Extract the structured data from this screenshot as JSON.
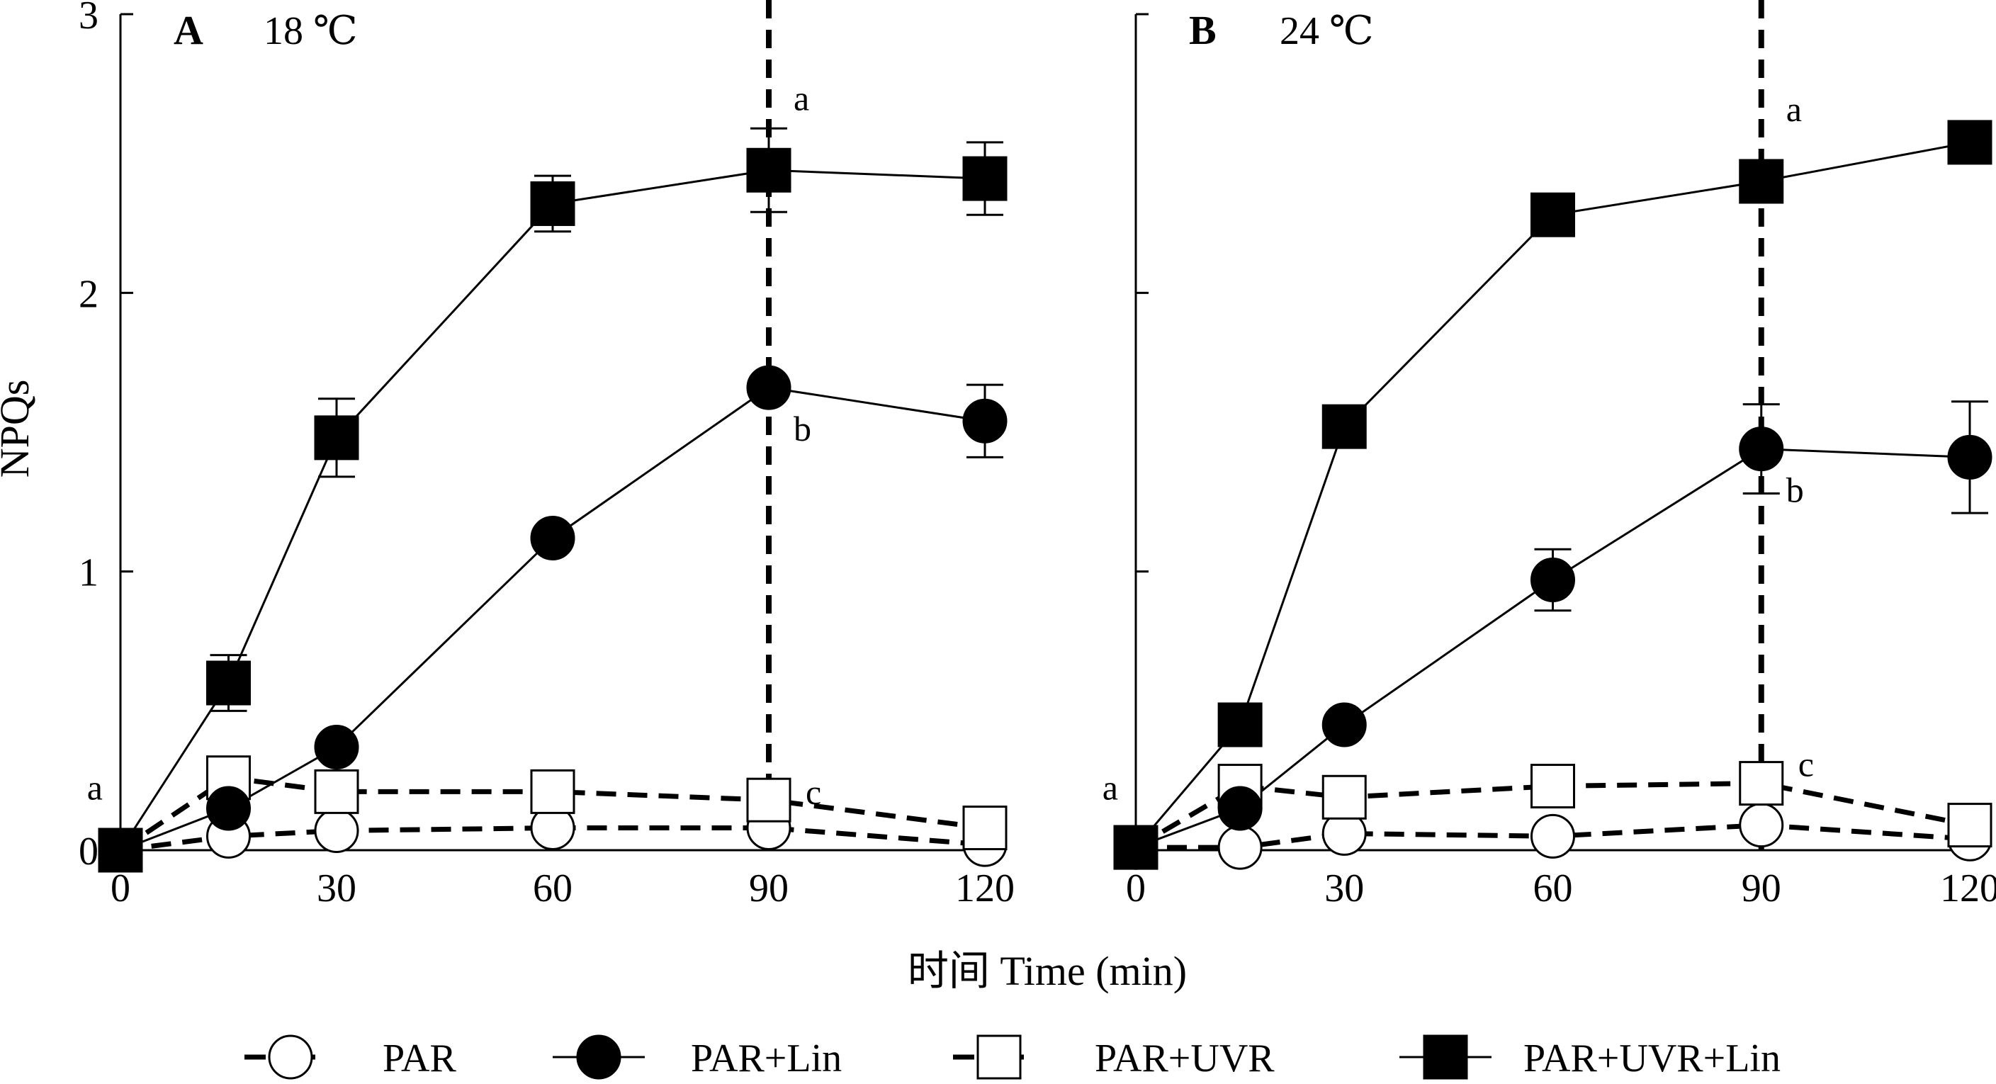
{
  "chart_data": {
    "type": "line",
    "ylabel": "NPQs",
    "xlabel": "时间 Time (min)",
    "ylim": [
      0,
      3
    ],
    "xlim": [
      0,
      120
    ],
    "x_ticks": [
      "0",
      "30",
      "60",
      "90",
      "120"
    ],
    "y_ticks": [
      "0",
      "1",
      "2",
      "3"
    ],
    "legend": [
      {
        "key": "PAR",
        "name": "PAR",
        "marker": "circle",
        "fill": "open",
        "line": "dashed"
      },
      {
        "key": "PAR_Lin",
        "name": "PAR+Lin",
        "marker": "circle",
        "fill": "filled",
        "line": "solid"
      },
      {
        "key": "PAR_UVR",
        "name": "PAR+UVR",
        "marker": "square",
        "fill": "open",
        "line": "dashed"
      },
      {
        "key": "PAR_UVR_Lin",
        "name": "PAR+UVR+Lin",
        "marker": "square",
        "fill": "filled",
        "line": "solid"
      }
    ],
    "panels": [
      {
        "id": "A",
        "letter": "A",
        "temp": "18 ℃",
        "vline_x": 90,
        "annotations": [
          {
            "text": "a",
            "x": 0,
            "y": 0.05,
            "pos": "above-left"
          },
          {
            "text": "a",
            "x": 90,
            "y": 2.44,
            "pos": "above-right"
          },
          {
            "text": "b",
            "x": 90,
            "y": 1.66,
            "pos": "below-right"
          },
          {
            "text": "c",
            "x": 90,
            "y": 0.14,
            "pos": "upper-right"
          }
        ],
        "series": [
          {
            "key": "PAR",
            "x": [
              0,
              15,
              30,
              60,
              90,
              120
            ],
            "y": [
              0,
              0.05,
              0.07,
              0.08,
              0.08,
              0.02
            ],
            "err": [
              0,
              0,
              0,
              0,
              0,
              0
            ]
          },
          {
            "key": "PAR_UVR",
            "x": [
              0,
              15,
              30,
              60,
              90,
              120
            ],
            "y": [
              0,
              0.26,
              0.21,
              0.21,
              0.18,
              0.08
            ],
            "err": [
              0,
              0,
              0,
              0,
              0,
              0
            ]
          },
          {
            "key": "PAR_Lin",
            "x": [
              0,
              15,
              30,
              60,
              90,
              120
            ],
            "y": [
              0,
              0.15,
              0.37,
              1.12,
              1.66,
              1.54
            ],
            "err": [
              0,
              0,
              0,
              0,
              0,
              0.13
            ]
          },
          {
            "key": "PAR_UVR_Lin",
            "x": [
              0,
              15,
              30,
              60,
              90,
              120
            ],
            "y": [
              0,
              0.6,
              1.48,
              2.32,
              2.44,
              2.41
            ],
            "err": [
              0,
              0.1,
              0.14,
              0.1,
              0.15,
              0.13
            ]
          }
        ]
      },
      {
        "id": "B",
        "letter": "B",
        "temp": "24 ℃",
        "vline_x": 90,
        "annotations": [
          {
            "text": "a",
            "x": 0,
            "y": 0.05,
            "pos": "above-left"
          },
          {
            "text": "a",
            "x": 90,
            "y": 2.4,
            "pos": "above-right"
          },
          {
            "text": "b",
            "x": 90,
            "y": 1.44,
            "pos": "below-right"
          },
          {
            "text": "c",
            "x": 90,
            "y": 0.24,
            "pos": "upper-right"
          }
        ],
        "series": [
          {
            "key": "PAR",
            "x": [
              0,
              15,
              30,
              60,
              90,
              120
            ],
            "y": [
              0.01,
              0.01,
              0.06,
              0.05,
              0.09,
              0.04
            ],
            "err": [
              0,
              0,
              0,
              0,
              0,
              0
            ]
          },
          {
            "key": "PAR_UVR",
            "x": [
              0,
              15,
              30,
              60,
              90,
              120
            ],
            "y": [
              0.01,
              0.23,
              0.19,
              0.23,
              0.24,
              0.09
            ],
            "err": [
              0,
              0,
              0,
              0,
              0,
              0
            ]
          },
          {
            "key": "PAR_Lin",
            "x": [
              0,
              15,
              30,
              60,
              90,
              120
            ],
            "y": [
              0.01,
              0.15,
              0.45,
              0.97,
              1.44,
              1.41
            ],
            "err": [
              0,
              0,
              0,
              0.11,
              0.16,
              0.2
            ]
          },
          {
            "key": "PAR_UVR_Lin",
            "x": [
              0,
              15,
              30,
              60,
              90,
              120
            ],
            "y": [
              0.01,
              0.45,
              1.52,
              2.28,
              2.4,
              2.54
            ],
            "err": [
              0,
              0,
              0,
              0,
              0,
              0
            ]
          }
        ]
      }
    ]
  }
}
